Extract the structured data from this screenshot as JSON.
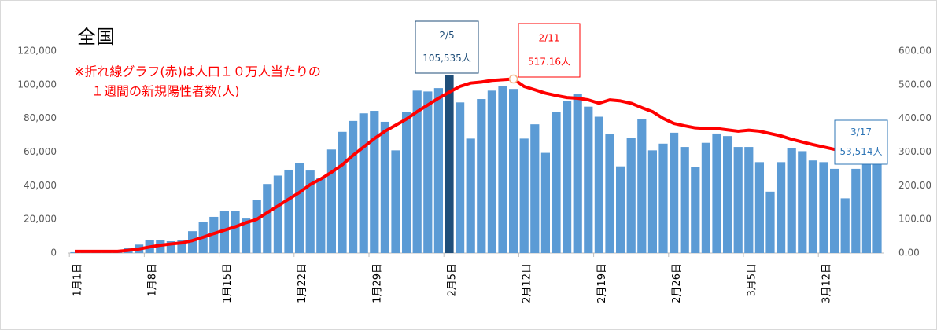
{
  "chart_data": {
    "type": "bar_line",
    "title": "全国",
    "note": [
      "※折れ線グラフ(赤)は人口１０万人当たりの",
      "１週間の新規陽性者数(人)"
    ],
    "categories": [
      "1月1日",
      null,
      null,
      null,
      null,
      null,
      null,
      "1月8日",
      null,
      null,
      null,
      null,
      null,
      null,
      "1月15日",
      null,
      null,
      null,
      null,
      null,
      null,
      "1月22日",
      null,
      null,
      null,
      null,
      null,
      null,
      "1月29日",
      null,
      null,
      null,
      null,
      null,
      null,
      "2月5日",
      null,
      null,
      null,
      null,
      null,
      null,
      "2月12日",
      null,
      null,
      null,
      null,
      null,
      null,
      "2月19日",
      null,
      null,
      null,
      null,
      null,
      null,
      "2月26日",
      null,
      null,
      null,
      null,
      null,
      null,
      "3月5日",
      null,
      null,
      null,
      null,
      null,
      null,
      "3月12日",
      null,
      null,
      null,
      null,
      null
    ],
    "series": [
      {
        "color": "#5b9bd5",
        "values": [
          500,
          500,
          500,
          500,
          500,
          3000,
          5000,
          7500,
          7500,
          7000,
          7500,
          13000,
          18500,
          21500,
          25000,
          25000,
          20500,
          31500,
          41000,
          46000,
          49500,
          53500,
          49000,
          44500,
          61500,
          72000,
          78500,
          83000,
          84500,
          78000,
          61000,
          84000,
          96500,
          96000,
          98000,
          105535,
          89500,
          68000,
          91500,
          96500,
          99000,
          97500,
          68000,
          76500,
          59500,
          84000,
          90500,
          94500,
          87000,
          81000,
          70500,
          51500,
          68500,
          79500,
          61000,
          65000,
          71500,
          63000,
          51000,
          65500,
          71000,
          69500,
          63000,
          63000,
          54000,
          36500,
          54000,
          62500,
          60500,
          55000,
          54000,
          50000,
          32500,
          50000,
          56000,
          53514
        ]
      },
      {
        "color": "#ff0000",
        "axis": "y2",
        "values": [
          5,
          5,
          5,
          5,
          5,
          8,
          12,
          18,
          23,
          27,
          30,
          37,
          47,
          58,
          68,
          78,
          90,
          100,
          120,
          140,
          160,
          180,
          203,
          220,
          240,
          262,
          290,
          315,
          340,
          362,
          380,
          398,
          420,
          440,
          460,
          478,
          495,
          505,
          508,
          513,
          515,
          517.16,
          495,
          485,
          475,
          468,
          462,
          460,
          455,
          445,
          455,
          452,
          445,
          432,
          420,
          400,
          385,
          378,
          372,
          370,
          370,
          366,
          362,
          365,
          362,
          355,
          348,
          338,
          330,
          322,
          315,
          308,
          300,
          296,
          290,
          280
        ]
      }
    ],
    "highlight": {
      "index": 35,
      "color": "#1f4e79"
    },
    "annotations": [
      {
        "text": "2/5",
        "label": "105,535人",
        "color": "#1f4e79"
      },
      {
        "text": "2/11",
        "label": "517.16人",
        "color": "#ff0000"
      },
      {
        "text": "3/17",
        "label": "53,514人",
        "color": "#2e75b6"
      }
    ],
    "ylim": [
      0,
      120000
    ],
    "yticks": [
      0,
      {
        "value": 20000,
        "label": "20,000"
      },
      {
        "value": 40000,
        "label": "40,000"
      },
      {
        "value": 60000,
        "label": "60,000"
      },
      {
        "value": 80000,
        "label": "80,000"
      },
      {
        "value": 100000,
        "label": "100,000"
      },
      {
        "value": 120000,
        "label": "120,000"
      }
    ],
    "y2lim": [
      0,
      600
    ],
    "y2ticks": [
      {
        "value": 0,
        "label": "0.00"
      },
      {
        "value": 100,
        "label": "100.00"
      },
      {
        "value": 200,
        "label": "200.00"
      },
      {
        "value": 300,
        "label": "300.00"
      },
      {
        "value": 400,
        "label": "400.00"
      },
      {
        "value": 500,
        "label": "500.00"
      },
      {
        "value": 600,
        "label": "600.00"
      }
    ]
  }
}
